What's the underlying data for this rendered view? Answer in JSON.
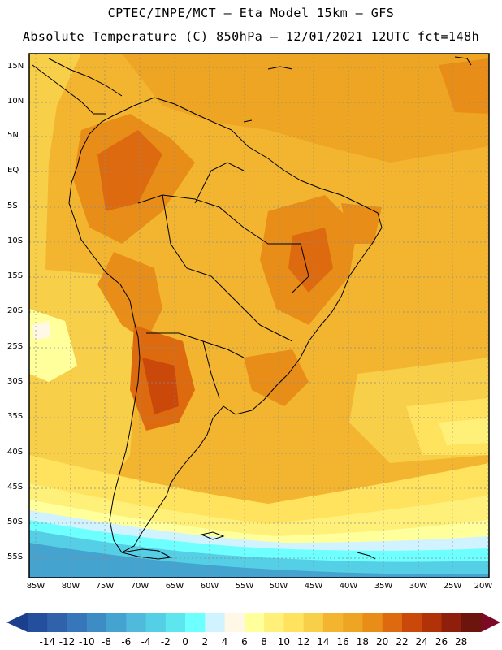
{
  "header": {
    "line1": "CPTEC/INPE/MCT –  Eta Model 15km – GFS",
    "line2": "Absolute Temperature (C) 850hPa – 12/01/2021 12UTC fct=148h"
  },
  "map": {
    "lat_range": [
      -58,
      18
    ],
    "lon_range": [
      -86,
      -20
    ],
    "lat_ticks": [
      "15N",
      "10N",
      "5N",
      "EQ",
      "5S",
      "10S",
      "15S",
      "20S",
      "25S",
      "30S",
      "35S",
      "40S",
      "45S",
      "50S",
      "55S"
    ],
    "lon_ticks": [
      "85W",
      "80W",
      "75W",
      "70W",
      "65W",
      "60W",
      "55W",
      "50W",
      "45W",
      "40W",
      "35W",
      "30W",
      "25W",
      "20W"
    ]
  },
  "legend": {
    "labels": [
      "-14",
      "-12",
      "-10",
      "-8",
      "-6",
      "-4",
      "-2",
      "0",
      "2",
      "4",
      "6",
      "8",
      "10",
      "12",
      "14",
      "16",
      "18",
      "20",
      "22",
      "24",
      "26",
      "28"
    ],
    "colors": [
      "#1b3f8c",
      "#244f9c",
      "#2f62ab",
      "#3776b8",
      "#3d8dc4",
      "#45a3cf",
      "#4fbadc",
      "#55cfe6",
      "#5ee6ee",
      "#6effff",
      "#d1f3ff",
      "#fff8e6",
      "#ffff9c",
      "#fff07a",
      "#ffe35e",
      "#f8cf48",
      "#f3b52f",
      "#eda523",
      "#e88d17",
      "#dd6a0e",
      "#c9480a",
      "#b13108",
      "#8f1f0a",
      "#6b150c",
      "#7a0a25"
    ]
  }
}
